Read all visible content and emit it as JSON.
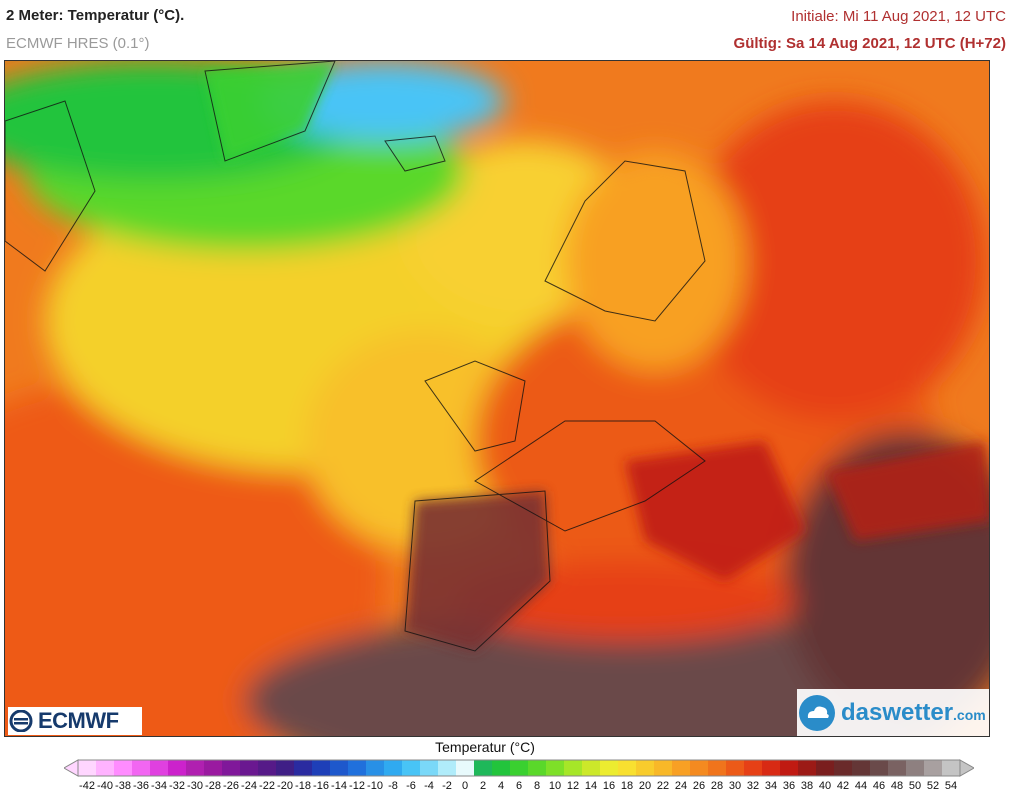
{
  "header": {
    "title": "2 Meter: Temperatur (°C).",
    "model": "ECMWF HRES (0.1°)",
    "initial": "Initiale: Mi 11 Aug 2021, 12 UTC",
    "valid": "Gültig: Sa 14 Aug 2021, 12 UTC (H+72)"
  },
  "logos": {
    "ecmwf": "ECMWF",
    "daswetter_name": "daswetter",
    "daswetter_tld": ".com"
  },
  "legend": {
    "title": "Temperatur (°C)",
    "ticks": [
      "-42",
      "-40",
      "-38",
      "-36",
      "-34",
      "-32",
      "-30",
      "-28",
      "-26",
      "-24",
      "-22",
      "-20",
      "-18",
      "-16",
      "-14",
      "-12",
      "-10",
      "-8",
      "-6",
      "-4",
      "-2",
      "0",
      "2",
      "4",
      "6",
      "8",
      "10",
      "12",
      "14",
      "16",
      "18",
      "20",
      "22",
      "24",
      "26",
      "28",
      "30",
      "32",
      "34",
      "36",
      "38",
      "40",
      "42",
      "44",
      "46",
      "48",
      "50",
      "52",
      "54"
    ],
    "colors": [
      "#ffd6ff",
      "#ffb3ff",
      "#ff8cff",
      "#f266f2",
      "#e040e0",
      "#cc22cc",
      "#b020b0",
      "#9a1aa0",
      "#80189a",
      "#6a1890",
      "#561a88",
      "#3f1f86",
      "#2a2ba0",
      "#1e3fb8",
      "#1e58cc",
      "#2070dc",
      "#2890e6",
      "#30aaf0",
      "#48c4f6",
      "#7ad8f8",
      "#b0ecfa",
      "#e8fafc",
      "#1fb85a",
      "#22c43c",
      "#3ad030",
      "#5ad82a",
      "#7ee028",
      "#a6e628",
      "#cce82a",
      "#ecec30",
      "#f8e030",
      "#f8cc2c",
      "#f8b828",
      "#f8a024",
      "#f48a20",
      "#f0741c",
      "#ec5a18",
      "#e64016",
      "#d82a14",
      "#c01a12",
      "#9c1a16",
      "#7a1e1e",
      "#6a2a2a",
      "#643636",
      "#6a4a4a",
      "#7a6262",
      "#8e8080",
      "#a8a0a0",
      "#c4c4c4"
    ]
  }
}
